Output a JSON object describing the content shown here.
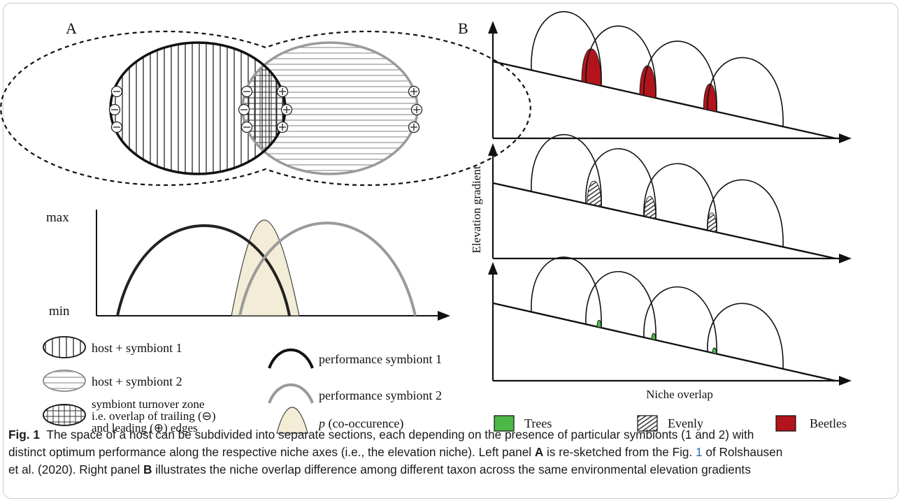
{
  "panel_a": {
    "label": "A",
    "axis": {
      "max": "max",
      "min": "min"
    },
    "legend_left": [
      {
        "text": "host + symbiont 1"
      },
      {
        "text": "host + symbiont 2"
      },
      {
        "line1": "symbiont turnover zone",
        "line2": "i.e. overlap of trailing (⊖)",
        "line3": "and leading (⊕) edges"
      }
    ],
    "legend_right": [
      {
        "text": "performance symbiont 1",
        "color": "#111111"
      },
      {
        "text": "performance symbiont 2",
        "color": "#9a9a9a"
      },
      {
        "italic": "p",
        "text": " (co-occurence)",
        "color": "#f3ecd6"
      }
    ]
  },
  "panel_b": {
    "label": "B",
    "ylabel": "Elevation gradient",
    "xlabel": "Niche overlap",
    "legend": [
      {
        "text": "Trees",
        "color": "#4cb848"
      },
      {
        "text": "Evenly",
        "color": "hatched"
      },
      {
        "text": "Beetles",
        "color": "#b3141c"
      }
    ]
  },
  "caption": {
    "fig": "Fig. 1",
    "p1": "The space of a host can be subdivided into separate sections, each depending on the presence of particular symbionts (1 and 2) with",
    "p2": "distinct optimum performance along the respective niche axes (i.e., the elevation niche). Left panel ",
    "bold_a": "A",
    "p3": " is re-sketched from the Fig. ",
    "ref": "1",
    "p4": " of Rolshausen",
    "p5": "et al. (2020). Right panel ",
    "bold_b": "B",
    "p6": " illustrates the niche overlap difference among different taxon across the same environmental elevation gradients"
  }
}
